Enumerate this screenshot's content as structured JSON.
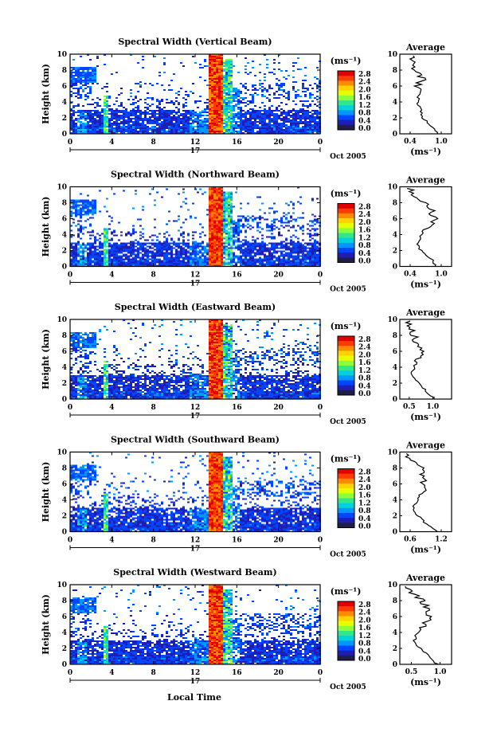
{
  "common": {
    "ylabel": "Height (km)",
    "xlabel": "Local Time",
    "date_label": "17",
    "month_label": "Oct 2005",
    "avg_title": "Average",
    "unit_label": "(ms⁻¹)"
  },
  "colorbar": {
    "ticks": [
      "2.8",
      "2.4",
      "2.0",
      "1.6",
      "1.2",
      "0.8",
      "0.4",
      "0.0"
    ],
    "stops": [
      "#e00000",
      "#ff3c00",
      "#ff8c00",
      "#ffd200",
      "#e6ff00",
      "#8cff3c",
      "#32e68c",
      "#00d2dc",
      "#0096ff",
      "#0046ff",
      "#1e1eb4",
      "#1e1e46"
    ]
  },
  "chart_data": [
    {
      "type": "heatmap",
      "title": "Spectral Width (Vertical Beam)",
      "ylabel": "Height (km)",
      "x_ticks": [
        "0",
        "4",
        "8",
        "12",
        "16",
        "20",
        "0"
      ],
      "y_ticks": [
        "0",
        "2",
        "4",
        "6",
        "8",
        "10"
      ],
      "xlim": [
        0,
        24
      ],
      "ylim": [
        0,
        10
      ],
      "colorbar_range": [
        0,
        3.0
      ],
      "avg_profile": {
        "xticks": [
          "0.4",
          "1.0"
        ],
        "xlim": [
          0.2,
          1.2
        ],
        "heights": [
          0,
          1,
          2,
          3,
          4,
          5,
          6,
          7,
          8,
          9,
          9.8
        ],
        "values": [
          0.95,
          0.8,
          0.65,
          0.6,
          0.55,
          0.6,
          0.55,
          0.65,
          0.5,
          0.45,
          0.45
        ]
      }
    },
    {
      "type": "heatmap",
      "title": "Spectral Width (Northward Beam)",
      "ylabel": "Height (km)",
      "x_ticks": [
        "0",
        "4",
        "8",
        "12",
        "16",
        "20",
        "0"
      ],
      "y_ticks": [
        "0",
        "2",
        "4",
        "6",
        "8",
        "10"
      ],
      "xlim": [
        0,
        24
      ],
      "ylim": [
        0,
        10
      ],
      "colorbar_range": [
        0,
        3.0
      ],
      "avg_profile": {
        "xticks": [
          "0.4",
          "1.0"
        ],
        "xlim": [
          0.2,
          1.2
        ],
        "heights": [
          0,
          1,
          2,
          3,
          4,
          5,
          6,
          7,
          8,
          9,
          9.8
        ],
        "values": [
          0.9,
          0.8,
          0.6,
          0.55,
          0.6,
          0.75,
          0.9,
          0.8,
          0.7,
          0.5,
          0.4
        ]
      }
    },
    {
      "type": "heatmap",
      "title": "Spectral Width (Eastward Beam)",
      "ylabel": "Height (km)",
      "x_ticks": [
        "0",
        "4",
        "8",
        "12",
        "16",
        "20",
        "0"
      ],
      "y_ticks": [
        "0",
        "2",
        "4",
        "6",
        "8",
        "10"
      ],
      "xlim": [
        0,
        24
      ],
      "ylim": [
        0,
        10
      ],
      "colorbar_range": [
        0,
        3.0
      ],
      "avg_profile": {
        "xticks": [
          "0.5",
          "1.0"
        ],
        "xlim": [
          0.3,
          1.4
        ],
        "heights": [
          0,
          1,
          2,
          3,
          4,
          5,
          6,
          7,
          8,
          9,
          9.8
        ],
        "values": [
          1.05,
          0.85,
          0.7,
          0.55,
          0.6,
          0.7,
          0.75,
          0.65,
          0.6,
          0.5,
          0.5
        ]
      }
    },
    {
      "type": "heatmap",
      "title": "Spectral Width (Southward Beam)",
      "ylabel": "Height (km)",
      "x_ticks": [
        "0",
        "4",
        "8",
        "12",
        "16",
        "20",
        "0"
      ],
      "y_ticks": [
        "0",
        "2",
        "4",
        "6",
        "8",
        "10"
      ],
      "xlim": [
        0,
        24
      ],
      "ylim": [
        0,
        10
      ],
      "colorbar_range": [
        0,
        3.0
      ],
      "avg_profile": {
        "xticks": [
          "0.6",
          "1.2"
        ],
        "xlim": [
          0.4,
          1.4
        ],
        "heights": [
          0,
          1,
          2,
          3,
          4,
          5,
          6,
          7,
          8,
          9,
          9.8
        ],
        "values": [
          1.1,
          0.9,
          0.75,
          0.65,
          0.75,
          0.85,
          0.9,
          0.8,
          0.85,
          0.6,
          0.55
        ]
      }
    },
    {
      "type": "heatmap",
      "title": "Spectral Width (Westward Beam)",
      "ylabel": "Height (km)",
      "x_ticks": [
        "0",
        "4",
        "8",
        "12",
        "16",
        "20",
        "0"
      ],
      "y_ticks": [
        "0",
        "2",
        "4",
        "6",
        "8",
        "10"
      ],
      "xlim": [
        0,
        24
      ],
      "ylim": [
        0,
        10
      ],
      "colorbar_range": [
        0,
        3.0
      ],
      "avg_profile": {
        "xticks": [
          "0.5",
          "1.0"
        ],
        "xlim": [
          0.3,
          1.2
        ],
        "heights": [
          0,
          1,
          2,
          3,
          4,
          5,
          6,
          7,
          8,
          9,
          9.8
        ],
        "values": [
          0.95,
          0.8,
          0.65,
          0.55,
          0.6,
          0.75,
          0.8,
          0.75,
          0.7,
          0.5,
          0.45
        ]
      }
    }
  ]
}
